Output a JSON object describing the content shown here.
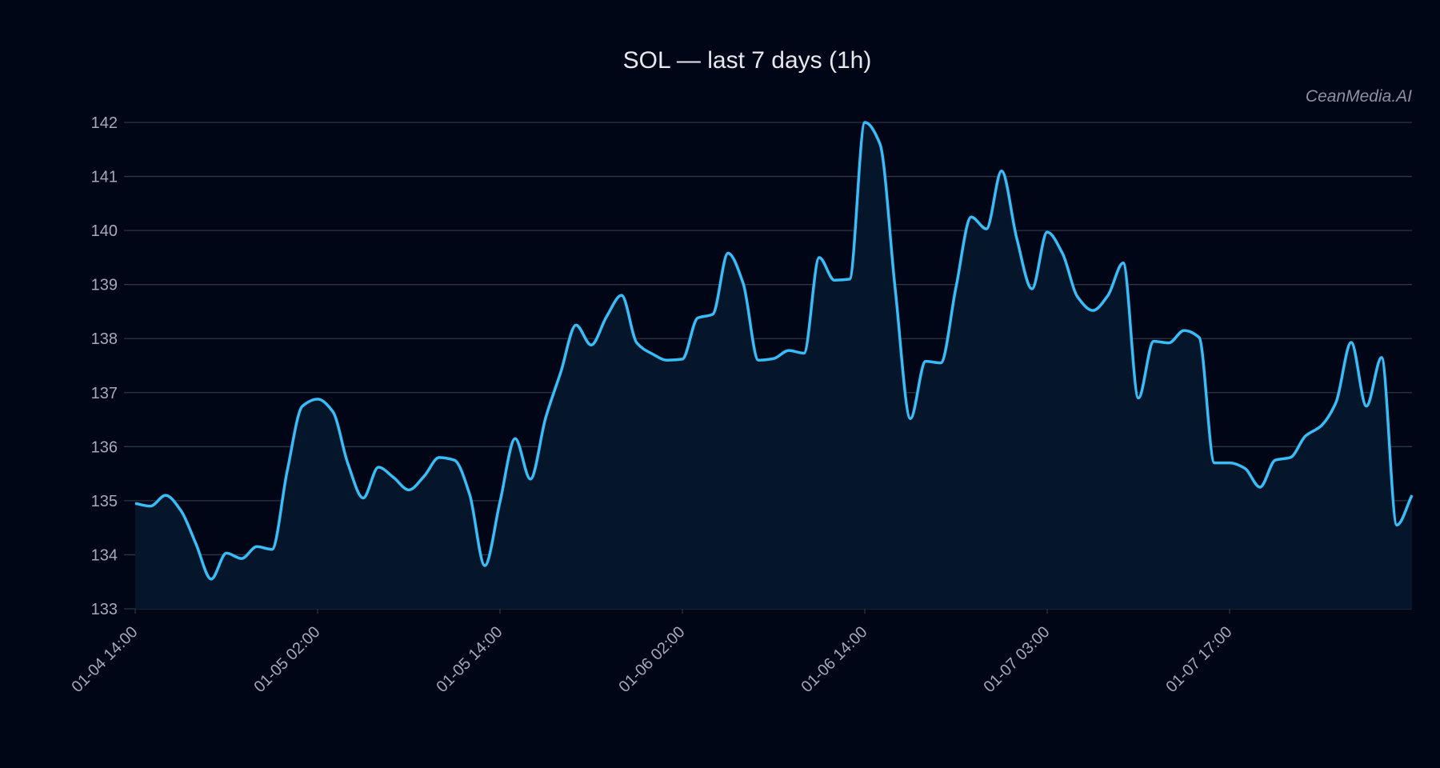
{
  "chart_data": {
    "type": "line",
    "title": "SOL — last 7 days (1h)",
    "watermark": "CeanMedia.AI",
    "xlabel": "",
    "ylabel": "",
    "ylim": [
      133,
      142
    ],
    "y_ticks": [
      "133",
      "134",
      "135",
      "136",
      "137",
      "138",
      "139",
      "140",
      "141",
      "142"
    ],
    "x_ticks": [
      {
        "index": 0,
        "label": "01-04 14:00"
      },
      {
        "index": 12,
        "label": "01-05 02:00"
      },
      {
        "index": 24,
        "label": "01-05 14:00"
      },
      {
        "index": 36,
        "label": "01-06 02:00"
      },
      {
        "index": 48,
        "label": "01-06 14:00"
      },
      {
        "index": 60,
        "label": "01-07 03:00"
      },
      {
        "index": 72,
        "label": "01-07 17:00"
      }
    ],
    "grid": true,
    "legend": "none",
    "colors": {
      "line": "#38bdf8",
      "fill": "#05162a",
      "background": "#010616",
      "grid": "#2b3545"
    },
    "series": [
      {
        "values": [
          134.95,
          134.9,
          135.1,
          134.82,
          134.2,
          133.55,
          134.03,
          133.93,
          134.15,
          134.1,
          135.55,
          136.75,
          136.88,
          136.65,
          135.68,
          135.05,
          135.62,
          135.43,
          135.2,
          135.45,
          135.8,
          135.75,
          135.12,
          133.8,
          134.98,
          136.15,
          135.4,
          136.53,
          137.38,
          138.25,
          137.88,
          138.4,
          138.8,
          137.92,
          137.72,
          137.6,
          137.62,
          138.38,
          138.45,
          139.58,
          139.02,
          137.6,
          137.63,
          137.78,
          137.73,
          139.5,
          139.08,
          139.1,
          142.0,
          141.6,
          138.92,
          136.52,
          137.58,
          137.55,
          138.95,
          140.25,
          140.03,
          141.1,
          139.85,
          138.92,
          139.97,
          139.58,
          138.77,
          138.52,
          138.8,
          139.4,
          136.9,
          137.95,
          137.92,
          138.15,
          138.02,
          135.7,
          135.7,
          135.6,
          135.25,
          135.75,
          135.8,
          136.2,
          136.38,
          136.82,
          137.93,
          136.75,
          137.65,
          134.55,
          135.1
        ]
      }
    ]
  }
}
